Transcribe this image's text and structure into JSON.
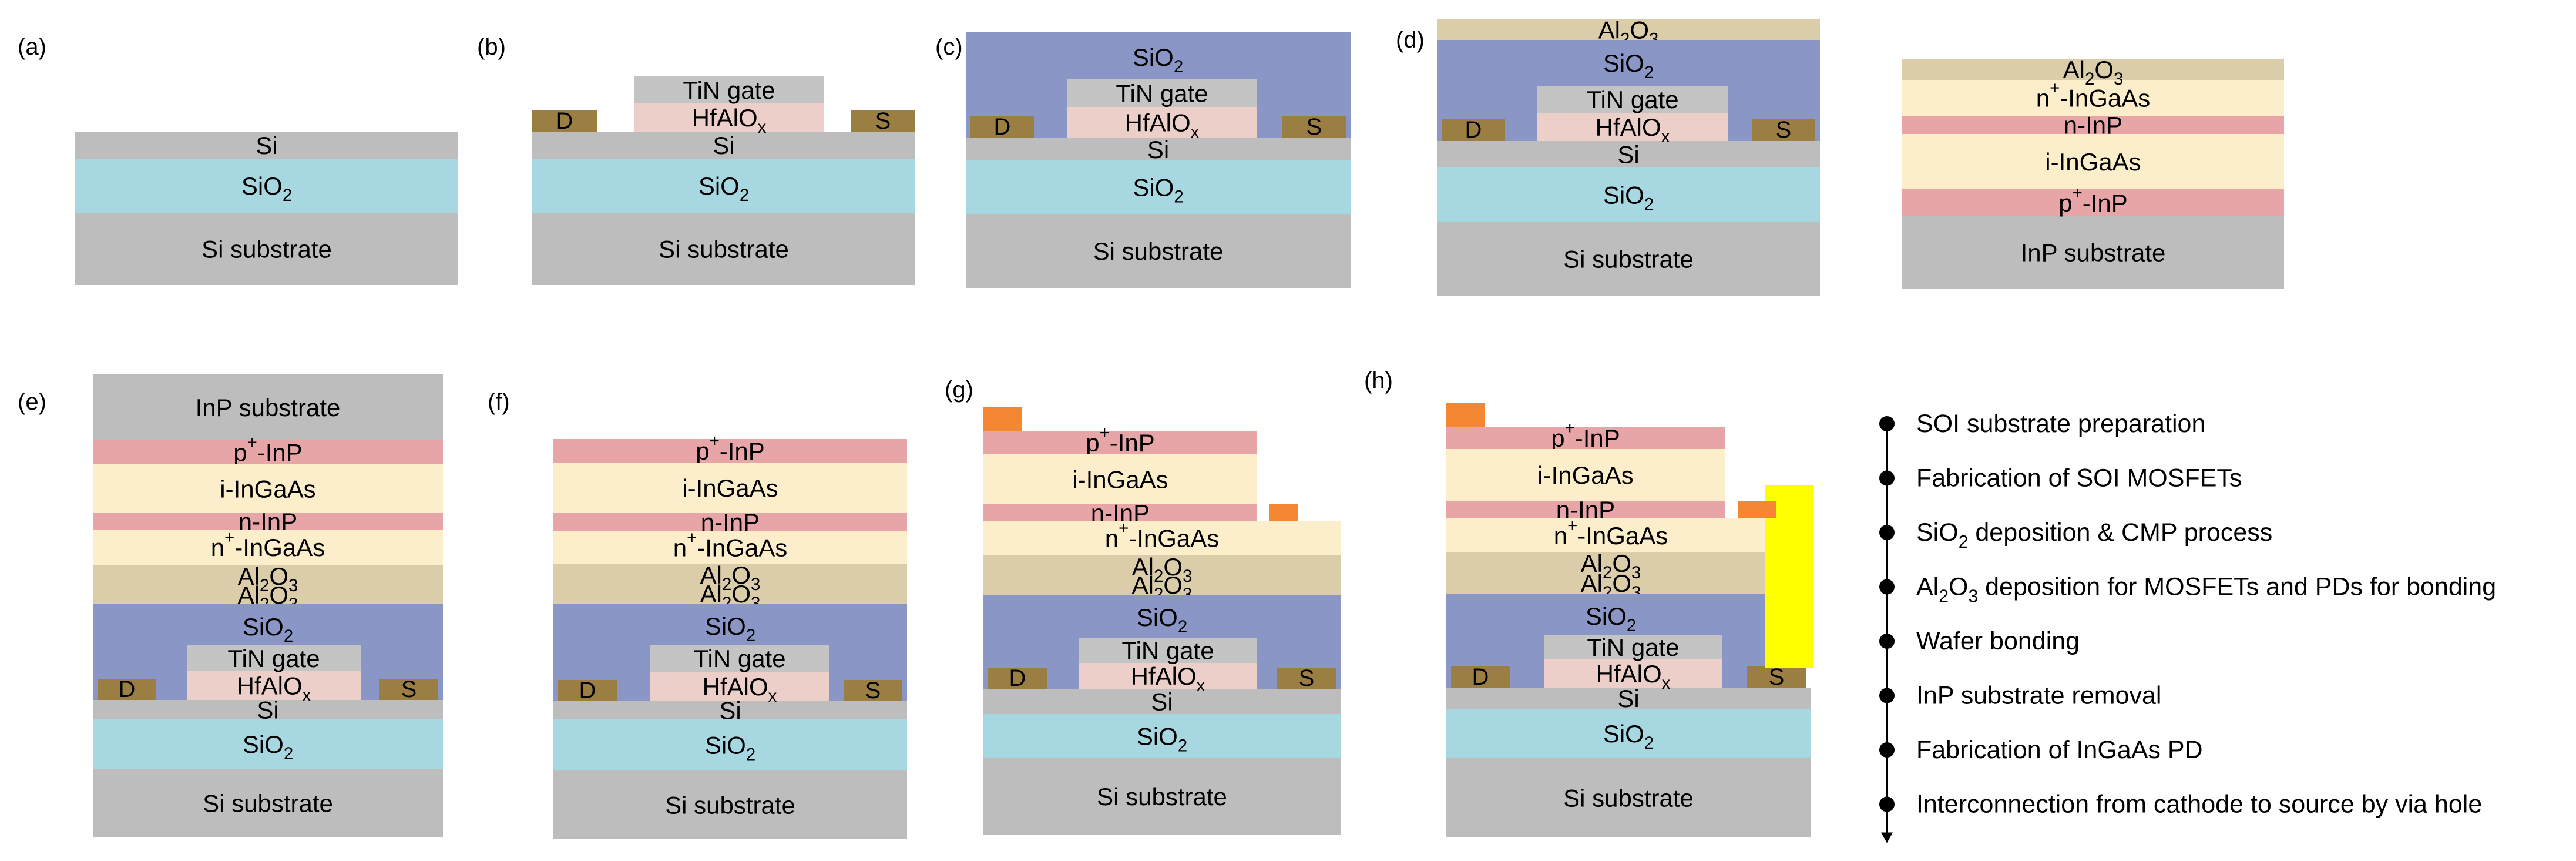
{
  "colors": {
    "si": "#bdbdbd",
    "sio2_bottom": "#a7d7e1",
    "sio2_top": "#8a96c6",
    "tin": "#c4c4c4",
    "hfalox": "#ebcfc8",
    "contact": "#9b7e42",
    "al2o3": "#dccdaa",
    "ningaas": "#fdeecb",
    "iningaas": "#fdeecb",
    "ninp": "#e8a5a8",
    "pinp": "#e8a5a8",
    "inp_sub": "#bdbdbd",
    "pd_contact": "#f58733",
    "via": "#ffff00",
    "flow_line": "#000000"
  },
  "panel_labels": [
    "(a)",
    "(b)",
    "(c)",
    "(d)",
    "(e)",
    "(f)",
    "(g)",
    "(h)"
  ],
  "materials": {
    "si_substrate": "Si substrate",
    "si": "Si",
    "sio2": "SiO",
    "sio2_sub": "2",
    "tin_gate": "TiN gate",
    "hfalox": "HfAlO",
    "hfalox_sub": "x",
    "al2o3_a": "Al",
    "al2o3_sub1": "2",
    "al2o3_b": "O",
    "al2o3_sub2": "3",
    "inp_substrate": "InP substrate",
    "p_inp": "p",
    "p_inp_sup": "+",
    "p_inp_rest": "-InP",
    "i_ingaas": "i-InGaAs",
    "n_inp": "n-InP",
    "n_ingaas": "n",
    "n_ingaas_sup": "+",
    "n_ingaas_rest": "-InGaAs",
    "drain": "D",
    "source": "S"
  },
  "flow": {
    "steps": [
      {
        "pre": "SOI substrate preparation",
        "sub": "",
        "post": ""
      },
      {
        "pre": "Fabrication of SOI MOSFETs",
        "sub": "",
        "post": ""
      },
      {
        "pre": "SiO",
        "sub": "2",
        "post": " deposition & CMP process"
      },
      {
        "pre": "Al",
        "sub": "2",
        "mid": "O",
        "sub2": "3",
        "post": " deposition for MOSFETs and PDs for bonding"
      },
      {
        "pre": "Wafer bonding",
        "sub": "",
        "post": ""
      },
      {
        "pre": "InP substrate removal",
        "sub": "",
        "post": ""
      },
      {
        "pre": "Fabrication of InGaAs PD",
        "sub": "",
        "post": ""
      },
      {
        "pre": "Interconnection from cathode to source by via hole",
        "sub": "",
        "post": ""
      }
    ]
  }
}
